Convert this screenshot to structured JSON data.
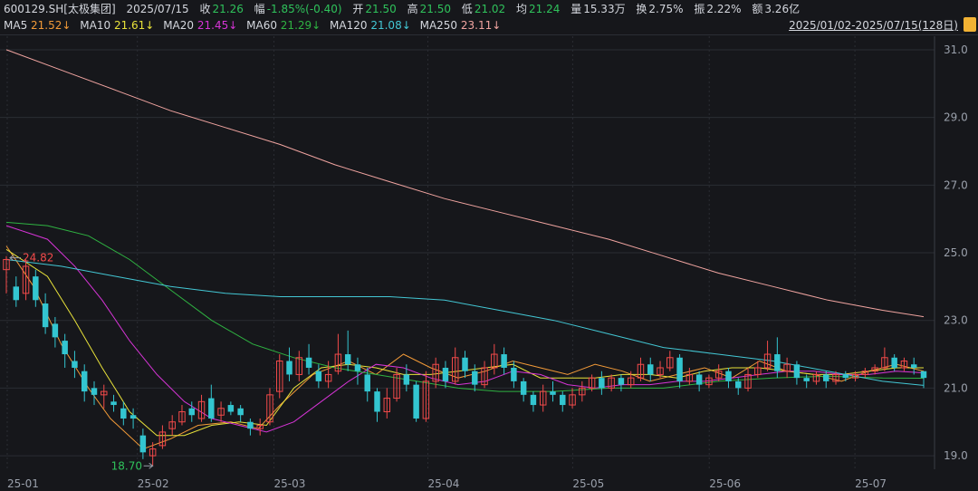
{
  "header": {
    "symbol": "600129.SH[太极集团]",
    "date": "2025/07/15",
    "close_label": "收",
    "close": "21.26",
    "change_label": "幅",
    "change": "-1.85%(-0.40)",
    "open_label": "开",
    "open": "21.50",
    "high_label": "高",
    "high": "21.50",
    "low_label": "低",
    "low": "21.02",
    "avg_label": "均",
    "avg": "21.24",
    "volume_label": "量",
    "volume": "15.33万",
    "turnover_label": "换",
    "turnover": "2.75%",
    "amplitude_label": "振",
    "amplitude": "2.22%",
    "amount_label": "额",
    "amount": "3.26亿"
  },
  "ma_legend": [
    {
      "label": "MA5",
      "value": "21.52↓",
      "color": "#f29a38"
    },
    {
      "label": "MA10",
      "value": "21.61↓",
      "color": "#e8e23a"
    },
    {
      "label": "MA20",
      "value": "21.45↓",
      "color": "#d634d6"
    },
    {
      "label": "MA60",
      "value": "21.29↓",
      "color": "#2fb342"
    },
    {
      "label": "MA120",
      "value": "21.08↓",
      "color": "#43c7d4"
    },
    {
      "label": "MA250",
      "value": "23.11↓",
      "color": "#f0a4a0"
    }
  ],
  "date_range": "2025/01/02-2025/07/15(128日)",
  "colors": {
    "up": "#f24a4a",
    "down": "#33c5d0",
    "grid": "#2a2d33",
    "axis_text": "#9aa0ab"
  },
  "chart_data": {
    "type": "candlestick",
    "ylim": [
      18.6,
      31.4
    ],
    "y_ticks": [
      "31.0",
      "29.0",
      "27.0",
      "25.0",
      "23.0",
      "21.0",
      "19.0"
    ],
    "x_ticks": [
      "25-01",
      "25-02",
      "25-03",
      "25-04",
      "25-05",
      "25-06",
      "25-07"
    ],
    "grid": true,
    "annotations": [
      {
        "label": "24.82",
        "kind": "high",
        "color": "#f24a4a"
      },
      {
        "label": "18.70",
        "kind": "low",
        "color": "#2fc25b"
      }
    ],
    "series": [
      {
        "name": "MA5",
        "color": "#f29a38",
        "values": [
          [
            0,
            25.2
          ],
          [
            10,
            24.0
          ],
          [
            20,
            22.3
          ],
          [
            30,
            21.0
          ],
          [
            38,
            20.1
          ],
          [
            50,
            19.2
          ],
          [
            60,
            19.5
          ],
          [
            70,
            19.9
          ],
          [
            82,
            20.0
          ],
          [
            92,
            19.8
          ],
          [
            100,
            20.5
          ],
          [
            112,
            21.4
          ],
          [
            125,
            21.8
          ],
          [
            135,
            21.4
          ],
          [
            145,
            22.0
          ],
          [
            155,
            21.6
          ],
          [
            165,
            21.3
          ],
          [
            175,
            21.5
          ],
          [
            185,
            21.8
          ],
          [
            195,
            21.6
          ],
          [
            205,
            21.4
          ],
          [
            215,
            21.7
          ],
          [
            225,
            21.5
          ],
          [
            235,
            21.2
          ],
          [
            245,
            21.4
          ],
          [
            255,
            21.6
          ],
          [
            265,
            21.3
          ],
          [
            275,
            21.8
          ],
          [
            285,
            21.5
          ],
          [
            295,
            21.4
          ],
          [
            305,
            21.2
          ],
          [
            315,
            21.5
          ],
          [
            325,
            21.7
          ],
          [
            335,
            21.5
          ]
        ]
      },
      {
        "name": "MA10",
        "color": "#e8e23a",
        "values": [
          [
            0,
            25.1
          ],
          [
            15,
            24.3
          ],
          [
            25,
            23.0
          ],
          [
            35,
            21.6
          ],
          [
            45,
            20.3
          ],
          [
            55,
            19.6
          ],
          [
            65,
            19.6
          ],
          [
            75,
            19.9
          ],
          [
            85,
            20.0
          ],
          [
            95,
            19.9
          ],
          [
            105,
            21.0
          ],
          [
            115,
            21.6
          ],
          [
            125,
            21.7
          ],
          [
            135,
            21.6
          ],
          [
            145,
            21.4
          ],
          [
            155,
            21.4
          ],
          [
            165,
            21.5
          ],
          [
            175,
            21.6
          ],
          [
            185,
            21.7
          ],
          [
            195,
            21.3
          ],
          [
            205,
            21.3
          ],
          [
            215,
            21.3
          ],
          [
            225,
            21.4
          ],
          [
            235,
            21.4
          ],
          [
            245,
            21.3
          ],
          [
            255,
            21.5
          ],
          [
            265,
            21.6
          ],
          [
            275,
            21.6
          ],
          [
            285,
            21.5
          ],
          [
            295,
            21.4
          ],
          [
            305,
            21.4
          ],
          [
            315,
            21.5
          ],
          [
            325,
            21.6
          ],
          [
            335,
            21.6
          ]
        ]
      },
      {
        "name": "MA20",
        "color": "#d634d6",
        "values": [
          [
            0,
            25.8
          ],
          [
            15,
            25.4
          ],
          [
            25,
            24.6
          ],
          [
            35,
            23.6
          ],
          [
            45,
            22.4
          ],
          [
            55,
            21.4
          ],
          [
            65,
            20.6
          ],
          [
            75,
            20.1
          ],
          [
            85,
            19.9
          ],
          [
            95,
            19.7
          ],
          [
            105,
            20.0
          ],
          [
            115,
            20.6
          ],
          [
            125,
            21.2
          ],
          [
            135,
            21.7
          ],
          [
            145,
            21.6
          ],
          [
            155,
            21.3
          ],
          [
            165,
            21.1
          ],
          [
            175,
            21.2
          ],
          [
            185,
            21.5
          ],
          [
            195,
            21.4
          ],
          [
            205,
            21.1
          ],
          [
            215,
            21.0
          ],
          [
            225,
            21.1
          ],
          [
            235,
            21.1
          ],
          [
            245,
            21.2
          ],
          [
            255,
            21.2
          ],
          [
            265,
            21.3
          ],
          [
            275,
            21.4
          ],
          [
            285,
            21.5
          ],
          [
            295,
            21.5
          ],
          [
            305,
            21.4
          ],
          [
            315,
            21.4
          ],
          [
            325,
            21.5
          ],
          [
            335,
            21.45
          ]
        ]
      },
      {
        "name": "MA60",
        "color": "#2fb342",
        "values": [
          [
            0,
            25.9
          ],
          [
            15,
            25.8
          ],
          [
            30,
            25.5
          ],
          [
            45,
            24.8
          ],
          [
            60,
            23.9
          ],
          [
            75,
            23.0
          ],
          [
            90,
            22.3
          ],
          [
            105,
            21.9
          ],
          [
            120,
            21.6
          ],
          [
            135,
            21.4
          ],
          [
            150,
            21.2
          ],
          [
            165,
            21.0
          ],
          [
            180,
            20.9
          ],
          [
            200,
            20.9
          ],
          [
            220,
            21.0
          ],
          [
            240,
            21.0
          ],
          [
            260,
            21.2
          ],
          [
            280,
            21.3
          ],
          [
            300,
            21.35
          ],
          [
            320,
            21.3
          ],
          [
            335,
            21.29
          ]
        ]
      },
      {
        "name": "MA120",
        "color": "#43c7d4",
        "values": [
          [
            0,
            24.8
          ],
          [
            20,
            24.6
          ],
          [
            40,
            24.3
          ],
          [
            60,
            24.0
          ],
          [
            80,
            23.8
          ],
          [
            100,
            23.7
          ],
          [
            120,
            23.7
          ],
          [
            140,
            23.7
          ],
          [
            160,
            23.6
          ],
          [
            180,
            23.3
          ],
          [
            200,
            23.0
          ],
          [
            220,
            22.6
          ],
          [
            240,
            22.2
          ],
          [
            260,
            22.0
          ],
          [
            280,
            21.8
          ],
          [
            300,
            21.5
          ],
          [
            320,
            21.2
          ],
          [
            335,
            21.08
          ]
        ]
      },
      {
        "name": "MA250",
        "color": "#f0a4a0",
        "values": [
          [
            0,
            31.0
          ],
          [
            20,
            30.4
          ],
          [
            40,
            29.8
          ],
          [
            60,
            29.2
          ],
          [
            80,
            28.7
          ],
          [
            100,
            28.2
          ],
          [
            120,
            27.6
          ],
          [
            140,
            27.1
          ],
          [
            160,
            26.6
          ],
          [
            180,
            26.2
          ],
          [
            200,
            25.8
          ],
          [
            220,
            25.4
          ],
          [
            240,
            24.9
          ],
          [
            260,
            24.4
          ],
          [
            280,
            24.0
          ],
          [
            300,
            23.6
          ],
          [
            320,
            23.3
          ],
          [
            335,
            23.11
          ]
        ]
      }
    ],
    "candles": [
      [
        24.5,
        24.8,
        23.8,
        24.9
      ],
      [
        24.0,
        23.6,
        23.4,
        24.3
      ],
      [
        23.8,
        24.6,
        23.6,
        24.8
      ],
      [
        24.3,
        23.6,
        23.4,
        24.5
      ],
      [
        23.5,
        22.8,
        22.6,
        23.8
      ],
      [
        22.9,
        22.5,
        22.2,
        23.1
      ],
      [
        22.4,
        22.0,
        21.6,
        22.6
      ],
      [
        21.8,
        21.6,
        21.3,
        22.1
      ],
      [
        21.5,
        20.9,
        20.6,
        21.7
      ],
      [
        21.0,
        20.8,
        20.5,
        21.2
      ],
      [
        20.8,
        20.9,
        20.4,
        21.1
      ],
      [
        20.6,
        20.5,
        20.3,
        20.8
      ],
      [
        20.4,
        20.1,
        19.9,
        20.6
      ],
      [
        20.2,
        20.1,
        19.8,
        20.4
      ],
      [
        19.6,
        19.1,
        18.9,
        19.8
      ],
      [
        19.0,
        19.2,
        18.7,
        19.4
      ],
      [
        19.3,
        19.7,
        19.2,
        19.9
      ],
      [
        19.8,
        20.0,
        19.6,
        20.2
      ],
      [
        20.0,
        20.3,
        19.9,
        20.5
      ],
      [
        20.4,
        20.2,
        20.0,
        20.6
      ],
      [
        20.1,
        20.6,
        20.0,
        20.8
      ],
      [
        20.7,
        20.1,
        20.0,
        21.1
      ],
      [
        20.2,
        20.4,
        20.0,
        20.6
      ],
      [
        20.5,
        20.3,
        20.2,
        20.6
      ],
      [
        20.4,
        20.2,
        20.0,
        20.5
      ],
      [
        20.0,
        19.8,
        19.6,
        20.1
      ],
      [
        19.8,
        19.9,
        19.6,
        20.1
      ],
      [
        20.0,
        20.8,
        19.9,
        21.0
      ],
      [
        20.9,
        21.8,
        20.7,
        22.0
      ],
      [
        21.8,
        21.4,
        21.2,
        22.2
      ],
      [
        21.4,
        21.9,
        21.2,
        22.1
      ],
      [
        21.9,
        21.6,
        21.4,
        22.3
      ],
      [
        21.5,
        21.2,
        21.0,
        21.7
      ],
      [
        21.2,
        21.4,
        21.0,
        21.8
      ],
      [
        21.5,
        22.0,
        21.4,
        22.6
      ],
      [
        22.0,
        21.7,
        21.5,
        22.7
      ],
      [
        21.7,
        21.5,
        21.1,
        21.9
      ],
      [
        21.4,
        20.9,
        20.6,
        21.6
      ],
      [
        20.9,
        20.3,
        20.0,
        21.0
      ],
      [
        20.3,
        20.7,
        20.1,
        21.0
      ],
      [
        20.7,
        21.4,
        20.6,
        21.6
      ],
      [
        21.4,
        21.1,
        20.9,
        21.7
      ],
      [
        21.1,
        20.1,
        20.0,
        21.2
      ],
      [
        20.1,
        21.2,
        20.0,
        21.5
      ],
      [
        21.2,
        21.7,
        21.0,
        21.9
      ],
      [
        21.6,
        21.2,
        21.0,
        21.8
      ],
      [
        21.2,
        21.9,
        21.1,
        22.2
      ],
      [
        21.9,
        21.5,
        21.3,
        22.1
      ],
      [
        21.5,
        21.1,
        20.9,
        21.7
      ],
      [
        21.1,
        21.6,
        21.0,
        21.8
      ],
      [
        21.6,
        22.0,
        21.4,
        22.3
      ],
      [
        22.0,
        21.6,
        21.4,
        22.2
      ],
      [
        21.6,
        21.2,
        21.0,
        21.8
      ],
      [
        21.2,
        20.8,
        20.6,
        21.3
      ],
      [
        20.8,
        20.5,
        20.3,
        20.9
      ],
      [
        20.5,
        20.9,
        20.3,
        21.1
      ],
      [
        20.9,
        20.8,
        20.6,
        21.2
      ],
      [
        20.8,
        20.5,
        20.3,
        20.9
      ],
      [
        20.5,
        20.8,
        20.4,
        21.0
      ],
      [
        20.8,
        21.0,
        20.6,
        21.2
      ],
      [
        21.0,
        21.3,
        20.9,
        21.4
      ],
      [
        21.3,
        21.0,
        20.8,
        21.5
      ],
      [
        21.0,
        21.3,
        20.9,
        21.4
      ],
      [
        21.3,
        21.1,
        20.9,
        21.4
      ],
      [
        21.1,
        21.3,
        21.0,
        21.5
      ],
      [
        21.3,
        21.7,
        21.2,
        21.9
      ],
      [
        21.7,
        21.4,
        21.2,
        21.9
      ],
      [
        21.4,
        21.6,
        21.3,
        21.8
      ],
      [
        21.6,
        21.9,
        21.5,
        22.1
      ],
      [
        21.9,
        21.2,
        21.0,
        22.0
      ],
      [
        21.2,
        21.4,
        21.1,
        21.6
      ],
      [
        21.4,
        21.1,
        20.9,
        21.5
      ],
      [
        21.1,
        21.3,
        21.0,
        21.4
      ],
      [
        21.3,
        21.5,
        21.2,
        21.7
      ],
      [
        21.5,
        21.2,
        21.0,
        21.6
      ],
      [
        21.2,
        21.0,
        20.8,
        21.3
      ],
      [
        21.0,
        21.4,
        20.9,
        21.6
      ],
      [
        21.4,
        21.6,
        21.3,
        21.8
      ],
      [
        21.6,
        22.0,
        21.5,
        22.4
      ],
      [
        22.0,
        21.5,
        21.3,
        22.5
      ],
      [
        21.5,
        21.7,
        21.3,
        21.9
      ],
      [
        21.7,
        21.3,
        21.1,
        21.8
      ],
      [
        21.3,
        21.2,
        21.0,
        21.4
      ],
      [
        21.2,
        21.4,
        21.1,
        21.5
      ],
      [
        21.4,
        21.2,
        21.0,
        21.5
      ],
      [
        21.2,
        21.4,
        21.1,
        21.5
      ],
      [
        21.4,
        21.3,
        21.2,
        21.5
      ],
      [
        21.3,
        21.4,
        21.2,
        21.5
      ],
      [
        21.4,
        21.5,
        21.3,
        21.6
      ],
      [
        21.5,
        21.6,
        21.4,
        21.7
      ],
      [
        21.6,
        21.9,
        21.5,
        22.2
      ],
      [
        21.9,
        21.6,
        21.5,
        22.0
      ],
      [
        21.6,
        21.8,
        21.5,
        21.9
      ],
      [
        21.7,
        21.6,
        21.4,
        21.9
      ],
      [
        21.5,
        21.3,
        21.0,
        21.5
      ]
    ]
  }
}
